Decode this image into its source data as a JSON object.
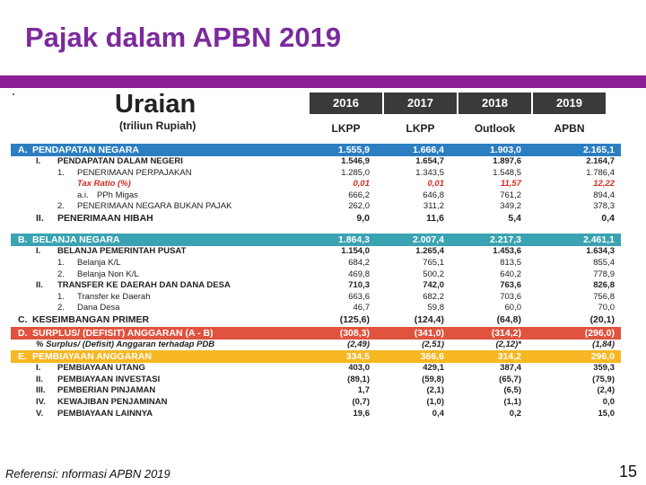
{
  "title": "Pajak dalam APBN 2019",
  "colors": {
    "title": "#7b2a9c",
    "bar": "#8e1e94",
    "blue": "#2b7ec1",
    "teal": "#3aa3b2",
    "red": "#e0533e",
    "yellow": "#f6b722",
    "negative_ratio": "#d62a1e"
  },
  "header": {
    "uraian": "Uraian",
    "uraian_sub": "(triliun Rupiah)",
    "years": [
      "2016",
      "2017",
      "2018",
      "2019"
    ],
    "kinds": [
      "LKPP",
      "LKPP",
      "Outlook",
      "APBN"
    ]
  },
  "rows": [
    {
      "style": "sec blue",
      "code": "A.",
      "label": "PENDAPATAN NEGARA",
      "v": [
        "1.555,9",
        "1.666,4",
        "1.903,0",
        "2.165,1"
      ]
    },
    {
      "style": "bold",
      "code": "I.",
      "label": "PENDAPATAN DALAM NEGERI",
      "v": [
        "1.546,9",
        "1.654,7",
        "1.897,6",
        "2.164,7"
      ]
    },
    {
      "style": "",
      "code": "1.",
      "label": "PENERIMAAN PERPAJAKAN",
      "v": [
        "1.285,0",
        "1.343,5",
        "1.548,5",
        "1.786,4"
      ]
    },
    {
      "style": "red",
      "code": "",
      "label": "Tax Ratio (%)",
      "v": [
        "0,01",
        "0,01",
        "11,57",
        "12,22"
      ]
    },
    {
      "style": "",
      "code": "a.i.",
      "label": "PPh Migas",
      "v": [
        "666,2",
        "646,8",
        "761,2",
        "894,4"
      ]
    },
    {
      "style": "",
      "code": "2.",
      "label": "PENERIMAAN NEGARA BUKAN PAJAK",
      "v": [
        "262,0",
        "311,2",
        "349,2",
        "378,3"
      ]
    },
    {
      "style": "big",
      "code": "II.",
      "label": "PENERIMAAN HIBAH",
      "v": [
        "9,0",
        "11,6",
        "5,4",
        "0,4"
      ]
    },
    {
      "style": "gap"
    },
    {
      "style": "sec teal",
      "code": "B.",
      "label": "BELANJA NEGARA",
      "v": [
        "1.864,3",
        "2.007,4",
        "2.217,3",
        "2.461,1"
      ]
    },
    {
      "style": "bold",
      "code": "I.",
      "label": "BELANJA PEMERINTAH PUSAT",
      "v": [
        "1.154,0",
        "1.265,4",
        "1.453,6",
        "1.634,3"
      ]
    },
    {
      "style": "",
      "code": "1.",
      "label": "Belanja K/L",
      "v": [
        "684,2",
        "765,1",
        "813,5",
        "855,4"
      ]
    },
    {
      "style": "",
      "code": "2.",
      "label": "Belanja Non K/L",
      "v": [
        "469,8",
        "500,2",
        "640,2",
        "778,9"
      ]
    },
    {
      "style": "bold",
      "code": "II.",
      "label": "TRANSFER KE DAERAH DAN DANA DESA",
      "v": [
        "710,3",
        "742,0",
        "763,6",
        "826,8"
      ]
    },
    {
      "style": "",
      "code": "1.",
      "label": "Transfer ke Daerah",
      "v": [
        "663,6",
        "682,2",
        "703,6",
        "756,8"
      ]
    },
    {
      "style": "",
      "code": "2.",
      "label": "Dana Desa",
      "v": [
        "46,7",
        "59,8",
        "60,0",
        "70,0"
      ]
    },
    {
      "style": "big",
      "code": "C.",
      "label": "KESEIMBANGAN PRIMER",
      "v": [
        "(125,6)",
        "(124,4)",
        "(64,8)",
        "(20,1)"
      ]
    },
    {
      "style": "sec red",
      "code": "D.",
      "label": "SURPLUS/ (DEFISIT) ANGGARAN (A - B)",
      "v": [
        "(308,3)",
        "(341,0)",
        "(314,2)",
        "(296,0)"
      ]
    },
    {
      "style": "italic-b",
      "code": "",
      "label": "% Surplus/ (Defisit) Anggaran terhadap PDB",
      "v": [
        "(2,49)",
        "(2,51)",
        "(2,12)*",
        "(1,84)"
      ]
    },
    {
      "style": "sec yellow",
      "code": "E.",
      "label": "PEMBIAYAAN ANGGARAN",
      "v": [
        "334,5",
        "366,6",
        "314,2",
        "296,0"
      ]
    },
    {
      "style": "bold",
      "code": "I.",
      "label": "PEMBIAYAAN UTANG",
      "v": [
        "403,0",
        "429,1",
        "387,4",
        "359,3"
      ]
    },
    {
      "style": "bold",
      "code": "II.",
      "label": "PEMBIAYAAN INVESTASI",
      "v": [
        "(89,1)",
        "(59,8)",
        "(65,7)",
        "(75,9)"
      ]
    },
    {
      "style": "bold",
      "code": "III.",
      "label": "PEMBERIAN PINJAMAN",
      "v": [
        "1,7",
        "(2,1)",
        "(6,5)",
        "(2,4)"
      ]
    },
    {
      "style": "bold",
      "code": "IV.",
      "label": "KEWAJIBAN PENJAMINAN",
      "v": [
        "(0,7)",
        "(1,0)",
        "(1,1)",
        "0,0"
      ]
    },
    {
      "style": "bold",
      "code": "V.",
      "label": "PEMBIAYAAN LAINNYA",
      "v": [
        "19,6",
        "0,4",
        "0,2",
        "15,0"
      ]
    }
  ],
  "footer": "Referensi: nformasi APBN 2019",
  "page_number": "15"
}
